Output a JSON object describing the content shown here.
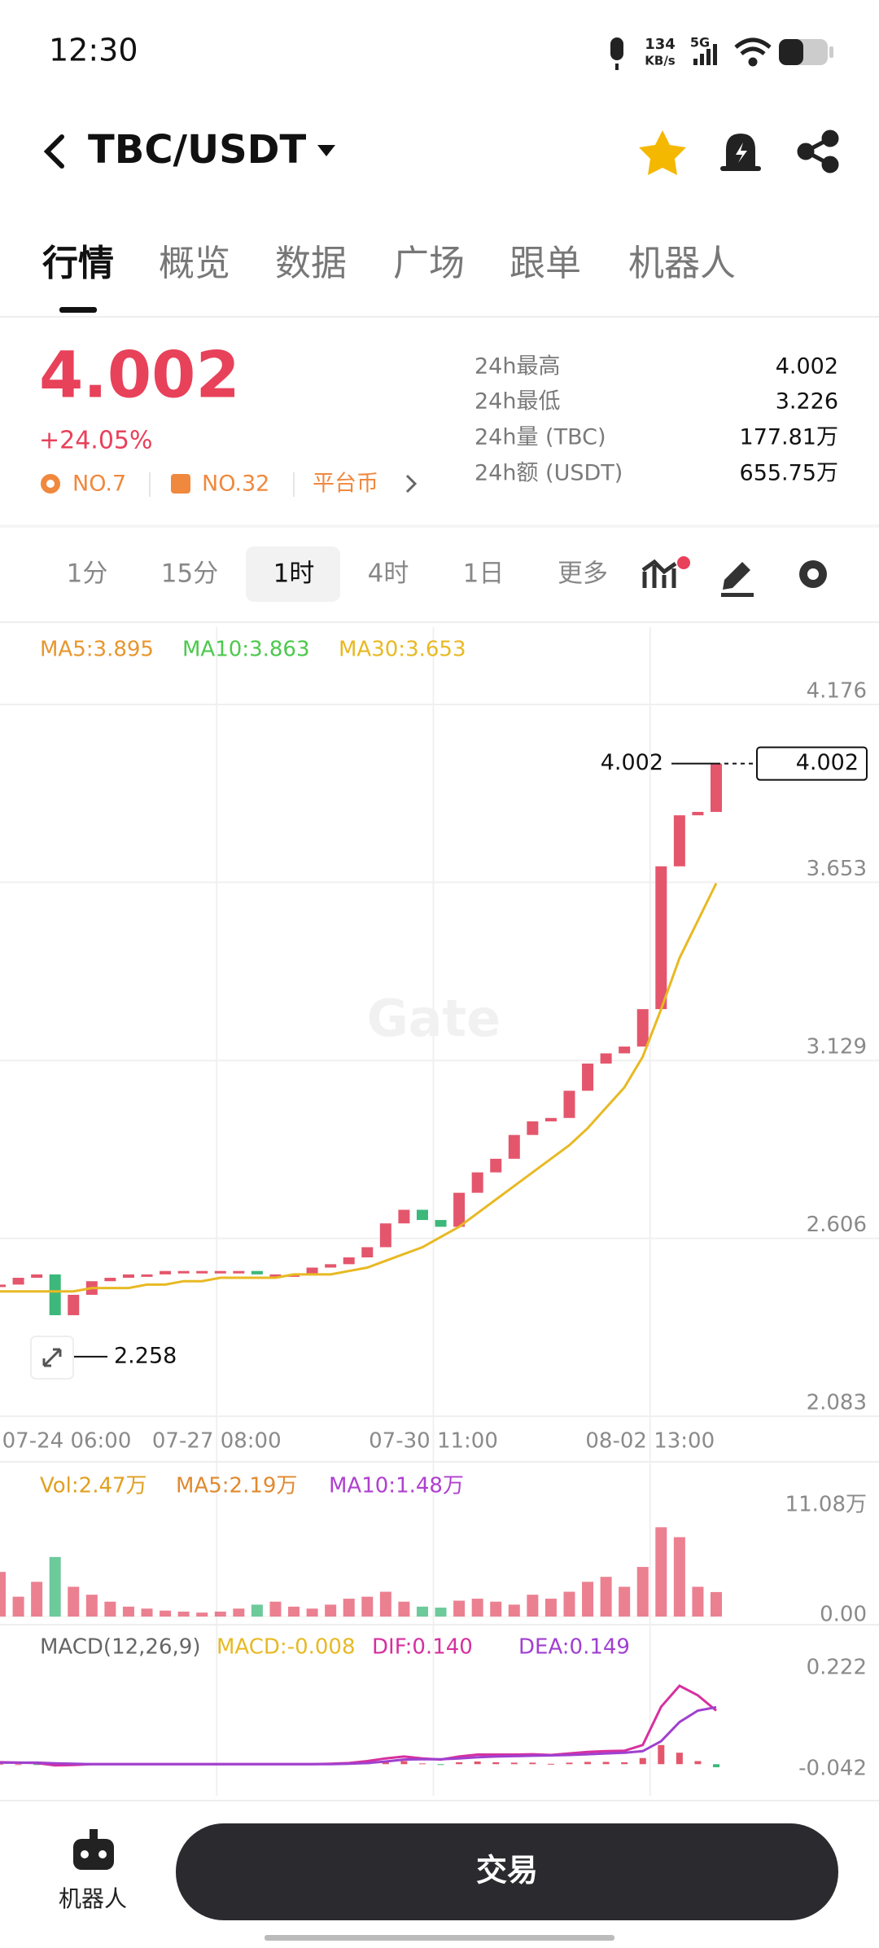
{
  "status_bar": {
    "time": "12:30",
    "speed": "134",
    "speed_unit": "KB/s",
    "network": "5G"
  },
  "header": {
    "pair": "TBC/USDT"
  },
  "tabs": [
    "行情",
    "概览",
    "数据",
    "广场",
    "跟单",
    "机器人"
  ],
  "ticker": {
    "price": "4.002",
    "change": "+24.05%",
    "rank": "NO.7",
    "sector_rank": "NO.32",
    "category": "平台币",
    "stats": [
      [
        "24h最高",
        "4.002"
      ],
      [
        "24h最低",
        "3.226"
      ],
      [
        "24h量 (TBC)",
        "177.81万"
      ],
      [
        "24h额 (USDT)",
        "655.75万"
      ]
    ]
  },
  "intervals": [
    "1分",
    "15分",
    "1时",
    "4时",
    "1日",
    "更多"
  ],
  "chart_data": [
    {
      "type": "candlestick",
      "legend": [
        "MA5:3.895",
        "MA10:3.863",
        "MA30:3.653"
      ],
      "legend_colors": [
        "#e8962e",
        "#4cc94c",
        "#e8b923"
      ],
      "watermark": "Gate",
      "up_color": "#e4566c",
      "down_color": "#3cb87a",
      "closes": [
        2.47,
        2.49,
        2.5,
        2.38,
        2.44,
        2.48,
        2.49,
        2.5,
        2.5,
        2.51,
        2.51,
        2.51,
        2.51,
        2.51,
        2.5,
        2.5,
        2.5,
        2.52,
        2.53,
        2.55,
        2.58,
        2.65,
        2.69,
        2.66,
        2.64,
        2.74,
        2.8,
        2.84,
        2.91,
        2.95,
        2.96,
        3.04,
        3.12,
        3.15,
        3.17,
        3.28,
        3.7,
        3.85,
        3.86,
        4.002
      ],
      "lines": [
        {
          "color": "#e8b923",
          "values": [
            2.45,
            2.45,
            2.45,
            2.45,
            2.45,
            2.46,
            2.46,
            2.46,
            2.47,
            2.47,
            2.48,
            2.48,
            2.49,
            2.49,
            2.49,
            2.49,
            2.5,
            2.5,
            2.5,
            2.51,
            2.52,
            2.54,
            2.56,
            2.58,
            2.61,
            2.64,
            2.68,
            2.72,
            2.76,
            2.8,
            2.84,
            2.88,
            2.93,
            2.99,
            3.05,
            3.14,
            3.28,
            3.43,
            3.54,
            3.65
          ]
        }
      ],
      "ylim": [
        2.083,
        4.176
      ],
      "yticks": [
        4.176,
        3.653,
        3.129,
        2.606,
        2.083
      ],
      "xlim": [
        0,
        39
      ],
      "xticks": [
        {
          "value": 0,
          "label": "07-24 06:00"
        },
        {
          "value": 11.8,
          "label": "07-27 08:00"
        },
        {
          "value": 23.6,
          "label": "07-30 11:00"
        },
        {
          "value": 35.4,
          "label": "08-02 13:00"
        }
      ],
      "high_label": 4.002,
      "low_label": 2.258,
      "last_price": 4.002
    },
    {
      "type": "bar",
      "legend": [
        "Vol:2.47万",
        "MA5:2.19万",
        "MA10:1.48万"
      ],
      "legend_colors": [
        "#e0a020",
        "#e08a30",
        "#b040d0"
      ],
      "values": [
        4.5,
        2.0,
        3.5,
        6.0,
        3.0,
        2.2,
        1.5,
        1.0,
        0.8,
        0.6,
        0.5,
        0.4,
        0.5,
        0.8,
        1.2,
        1.5,
        1.0,
        0.8,
        1.2,
        1.8,
        2.0,
        2.5,
        1.5,
        1.0,
        0.9,
        1.6,
        1.8,
        1.5,
        1.2,
        2.2,
        1.8,
        2.5,
        3.5,
        4.0,
        3.0,
        5.0,
        9.0,
        8.0,
        3.0,
        2.47
      ],
      "ylim": [
        0,
        11.08
      ],
      "yticks": [
        {
          "value": 11.08,
          "label": "11.08万"
        },
        {
          "value": 0,
          "label": "0.00"
        }
      ]
    },
    {
      "type": "macd",
      "legend": [
        "MACD(12,26,9)",
        "MACD:-0.008",
        "DIF:0.140",
        "DEA:0.149"
      ],
      "legend_colors": [
        "#666666",
        "#e8b923",
        "#d6309f",
        "#a040d0"
      ],
      "histogram": [
        0.001,
        0,
        -0.001,
        -0.005,
        -0.003,
        0,
        0,
        0,
        0,
        0,
        0,
        0,
        0,
        0,
        0,
        0,
        0,
        0,
        0.001,
        0.002,
        0.005,
        0.008,
        0.008,
        0.002,
        -0.001,
        0.005,
        0.007,
        0.005,
        0.004,
        0.004,
        0.001,
        0.004,
        0.006,
        0.006,
        0.005,
        0.016,
        0.05,
        0.03,
        0.008,
        -0.008
      ],
      "dif": {
        "color": "#d6309f",
        "values": [
          0.005,
          0.004,
          0.003,
          -0.003,
          -0.002,
          0,
          0,
          0,
          0,
          0,
          0,
          0,
          0,
          0,
          0,
          0,
          0,
          0,
          0.001,
          0.003,
          0.008,
          0.015,
          0.02,
          0.015,
          0.012,
          0.02,
          0.025,
          0.025,
          0.025,
          0.026,
          0.024,
          0.028,
          0.032,
          0.034,
          0.035,
          0.05,
          0.15,
          0.205,
          0.18,
          0.14
        ]
      },
      "dea": {
        "color": "#a040d0",
        "values": [
          0.004,
          0.004,
          0.004,
          0.002,
          0.001,
          0,
          0,
          0,
          0,
          0,
          0,
          0,
          0,
          0,
          0,
          0,
          0,
          0,
          0,
          0.001,
          0.003,
          0.007,
          0.012,
          0.013,
          0.013,
          0.015,
          0.018,
          0.02,
          0.021,
          0.022,
          0.023,
          0.024,
          0.026,
          0.028,
          0.03,
          0.034,
          0.06,
          0.11,
          0.14,
          0.149
        ]
      },
      "ylim": [
        -0.042,
        0.222
      ],
      "yticks": [
        0.222,
        -0.042
      ]
    }
  ],
  "bottom_bar": {
    "robot": "机器人",
    "trade": "交易"
  }
}
